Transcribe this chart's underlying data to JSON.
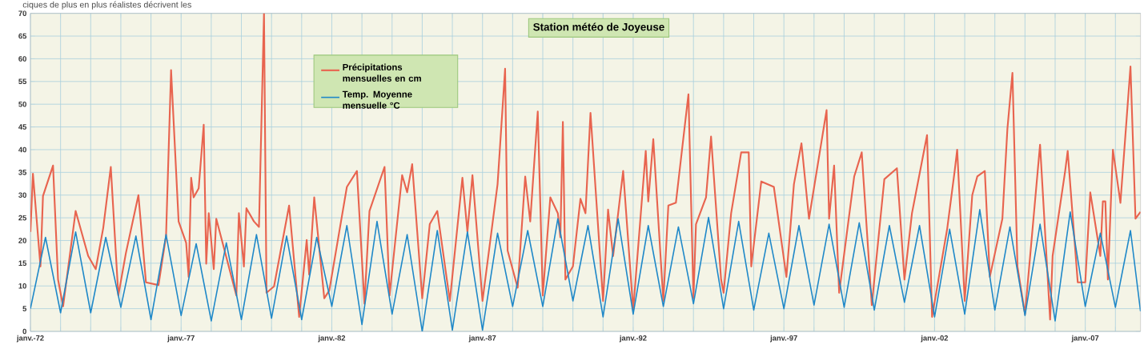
{
  "chart_data": {
    "type": "line",
    "title": "Station météo de Joyeuse",
    "annotations": [
      "ciques de plus en plus réalistes décrivent les"
    ],
    "xlim": [
      "1972-01",
      "2008-11"
    ],
    "xticks": [
      {
        "value": "1972-01",
        "label": "janv.-72"
      },
      {
        "value": "1973-01",
        "label": null
      },
      {
        "value": "1974-01",
        "label": null
      },
      {
        "value": "1975-01",
        "label": null
      },
      {
        "value": "1976-01",
        "label": null
      },
      {
        "value": "1977-01",
        "label": "janv.-77"
      },
      {
        "value": "1978-01",
        "label": null
      },
      {
        "value": "1979-01",
        "label": null
      },
      {
        "value": "1980-01",
        "label": null
      },
      {
        "value": "1981-01",
        "label": null
      },
      {
        "value": "1982-01",
        "label": "janv.-82"
      },
      {
        "value": "1983-01",
        "label": null
      },
      {
        "value": "1984-01",
        "label": null
      },
      {
        "value": "1985-01",
        "label": null
      },
      {
        "value": "1986-01",
        "label": null
      },
      {
        "value": "1987-01",
        "label": "janv.-87"
      },
      {
        "value": "1988-01",
        "label": null
      },
      {
        "value": "1989-01",
        "label": null
      },
      {
        "value": "1990-01",
        "label": null
      },
      {
        "value": "1991-01",
        "label": null
      },
      {
        "value": "1992-01",
        "label": "janv.-92"
      },
      {
        "value": "1993-01",
        "label": null
      },
      {
        "value": "1994-01",
        "label": null
      },
      {
        "value": "1995-01",
        "label": null
      },
      {
        "value": "1996-01",
        "label": null
      },
      {
        "value": "1997-01",
        "label": "janv.-97"
      },
      {
        "value": "1998-01",
        "label": null
      },
      {
        "value": "1999-01",
        "label": null
      },
      {
        "value": "2000-01",
        "label": null
      },
      {
        "value": "2001-01",
        "label": null
      },
      {
        "value": "2002-01",
        "label": "janv.-02"
      },
      {
        "value": "2003-01",
        "label": null
      },
      {
        "value": "2004-01",
        "label": null
      },
      {
        "value": "2005-01",
        "label": null
      },
      {
        "value": "2006-01",
        "label": null
      },
      {
        "value": "2007-01",
        "label": "janv.-07"
      },
      {
        "value": "2008-01",
        "label": null
      }
    ],
    "ylim": [
      0,
      70
    ],
    "yticks": [
      0,
      5,
      10,
      15,
      20,
      25,
      30,
      35,
      40,
      45,
      50,
      55,
      60,
      65,
      70
    ],
    "grid": true,
    "legend": "top left",
    "series": [
      {
        "name": "Précipitations mensuelles en cm",
        "color": "#e8644f",
        "x": [
          "1972-01",
          "1972-02",
          "1972-05",
          "1972-06",
          "1972-10",
          "1972-12",
          "1973-02",
          "1973-07",
          "1973-12",
          "1974-03",
          "1974-06",
          "1974-09",
          "1974-12",
          "1975-03",
          "1975-08",
          "1975-11",
          "1976-04",
          "1976-07",
          "1976-09",
          "1976-12",
          "1977-03",
          "1977-04",
          "1977-05",
          "1977-06",
          "1977-08",
          "1977-10",
          "1977-11",
          "1977-12",
          "1978-02",
          "1978-03",
          "1978-11",
          "1978-12",
          "1979-02",
          "1979-03",
          "1979-06",
          "1979-08",
          "1979-10",
          "1979-11",
          "1980-02",
          "1980-08",
          "1980-12",
          "1981-03",
          "1981-04",
          "1981-06",
          "1981-10",
          "1981-12",
          "1982-07",
          "1982-11",
          "1983-02",
          "1983-04",
          "1983-10",
          "1983-12",
          "1984-05",
          "1984-07",
          "1984-09",
          "1985-01",
          "1985-04",
          "1985-07",
          "1985-12",
          "1986-05",
          "1986-07",
          "1986-09",
          "1987-01",
          "1987-07",
          "1987-10",
          "1987-11",
          "1988-03",
          "1988-06",
          "1988-08",
          "1988-11",
          "1989-01",
          "1989-04",
          "1989-07",
          "1989-08",
          "1989-09",
          "1989-10",
          "1990-01",
          "1990-04",
          "1990-06",
          "1990-08",
          "1991-01",
          "1991-03",
          "1991-05",
          "1991-09",
          "1992-01",
          "1992-06",
          "1992-07",
          "1992-09",
          "1993-01",
          "1993-03",
          "1993-06",
          "1993-11",
          "1994-01",
          "1994-02",
          "1994-06",
          "1994-08",
          "1994-12",
          "1995-01",
          "1995-04",
          "1995-08",
          "1995-11",
          "1995-12",
          "1996-04",
          "1996-09",
          "1997-02",
          "1997-05",
          "1997-08",
          "1997-11",
          "1998-06",
          "1998-07",
          "1998-09",
          "1998-11",
          "1999-05",
          "1999-08",
          "1999-12",
          "2000-05",
          "2000-10",
          "2001-01",
          "2001-04",
          "2001-10",
          "2001-12",
          "2002-06",
          "2002-09",
          "2002-10",
          "2003-01",
          "2003-04",
          "2003-06",
          "2003-09",
          "2003-11",
          "2004-04",
          "2004-06",
          "2004-08",
          "2004-10",
          "2005-01",
          "2005-04",
          "2005-07",
          "2005-11",
          "2005-12",
          "2006-05",
          "2006-06",
          "2006-10",
          "2007-01",
          "2007-03",
          "2007-07",
          "2007-08",
          "2007-09",
          "2007-10",
          "2007-12",
          "2008-03",
          "2008-07",
          "2008-09",
          "2008-11"
        ],
        "values": [
          21.9,
          34.7,
          14.3,
          29.8,
          36.5,
          11.4,
          5.5,
          26.5,
          16.6,
          13.7,
          22.8,
          36.2,
          7.9,
          17.2,
          30,
          10.8,
          10.2,
          21,
          57.5,
          24.2,
          19.5,
          12,
          33.8,
          29.5,
          31.5,
          45.5,
          14.9,
          26,
          13.7,
          24.8,
          7.9,
          26,
          14.3,
          27.1,
          24.2,
          23,
          70,
          8.5,
          9.9,
          27.7,
          3.2,
          20.1,
          12.5,
          29.5,
          7.3,
          9,
          31.8,
          35.3,
          6.1,
          26.5,
          36.2,
          7.9,
          34.4,
          30.6,
          36.8,
          7.3,
          23.6,
          26.5,
          6.7,
          33.8,
          21.9,
          34.4,
          6.7,
          32.4,
          57.8,
          17.8,
          9.6,
          34.1,
          24.2,
          48.4,
          7.9,
          29.5,
          26,
          20.7,
          46.1,
          11.4,
          14.3,
          29.2,
          26,
          48.1,
          6.7,
          26.8,
          16.6,
          35.3,
          4.7,
          39.7,
          28.6,
          42.3,
          6.7,
          27.7,
          28.3,
          52.2,
          7.3,
          23.6,
          29.5,
          42.9,
          11.4,
          8.5,
          26,
          39.4,
          39.4,
          14.3,
          33,
          31.8,
          12,
          32.4,
          41.4,
          24.8,
          48.7,
          24.8,
          36.5,
          8.5,
          34.1,
          39.4,
          5.8,
          33.5,
          35.9,
          11.4,
          26,
          43.2,
          3.2,
          22.5,
          35.3,
          40,
          6.7,
          30,
          34.1,
          35.3,
          12,
          24.8,
          44.6,
          56.9,
          14.3,
          3.8,
          22.5,
          41.1,
          2.6,
          16.6,
          35.3,
          39.7,
          10.8,
          10.8,
          30.6,
          16.6,
          28.6,
          28.6,
          11.4,
          40,
          28.3,
          58.3,
          24.8,
          26.3
        ]
      },
      {
        "name": "Temp. Moyenne mensuelle °C",
        "color": "#1f88c8",
        "x": [
          "1972-01",
          "1972-07",
          "1973-01",
          "1973-07",
          "1974-01",
          "1974-07",
          "1975-01",
          "1975-07",
          "1976-01",
          "1976-07",
          "1977-01",
          "1977-07",
          "1978-01",
          "1978-07",
          "1979-01",
          "1979-07",
          "1980-01",
          "1980-07",
          "1981-01",
          "1981-07",
          "1982-01",
          "1982-07",
          "1983-01",
          "1983-07",
          "1984-01",
          "1984-07",
          "1985-01",
          "1985-07",
          "1986-01",
          "1986-07",
          "1987-01",
          "1987-07",
          "1988-01",
          "1988-07",
          "1989-01",
          "1989-07",
          "1990-01",
          "1990-07",
          "1991-01",
          "1991-07",
          "1992-01",
          "1992-07",
          "1993-01",
          "1993-07",
          "1994-01",
          "1994-07",
          "1995-01",
          "1995-07",
          "1996-01",
          "1996-07",
          "1997-01",
          "1997-07",
          "1998-01",
          "1998-07",
          "1999-01",
          "1999-07",
          "2000-01",
          "2000-07",
          "2001-01",
          "2001-07",
          "2002-01",
          "2002-07",
          "2003-01",
          "2003-07",
          "2004-01",
          "2004-07",
          "2005-01",
          "2005-07",
          "2006-01",
          "2006-07",
          "2007-01",
          "2007-07",
          "2008-01",
          "2008-07",
          "2008-11"
        ],
        "values": [
          5,
          20.7,
          4.1,
          21.9,
          4.1,
          20.7,
          5.3,
          21,
          2.6,
          21.3,
          3.5,
          19.3,
          2.3,
          19.5,
          2.6,
          21.3,
          2.9,
          21,
          2.6,
          20.7,
          5.5,
          23.3,
          1.5,
          24.2,
          3.8,
          21.3,
          0,
          22.2,
          0.3,
          21.9,
          0.3,
          21.6,
          5.5,
          22.2,
          5.5,
          24.8,
          6.7,
          23.3,
          3.2,
          24.8,
          3.8,
          23.3,
          5.5,
          23,
          6.1,
          25.1,
          5,
          24.2,
          4.7,
          21.6,
          5,
          23.3,
          5.8,
          23.6,
          5.3,
          23.9,
          4.7,
          23.3,
          6.4,
          23.3,
          3.2,
          22.5,
          3.8,
          26.8,
          4.7,
          23,
          3.5,
          23.6,
          2.3,
          26.3,
          5.5,
          21.6,
          5.3,
          22.2,
          4.4
        ]
      }
    ]
  }
}
